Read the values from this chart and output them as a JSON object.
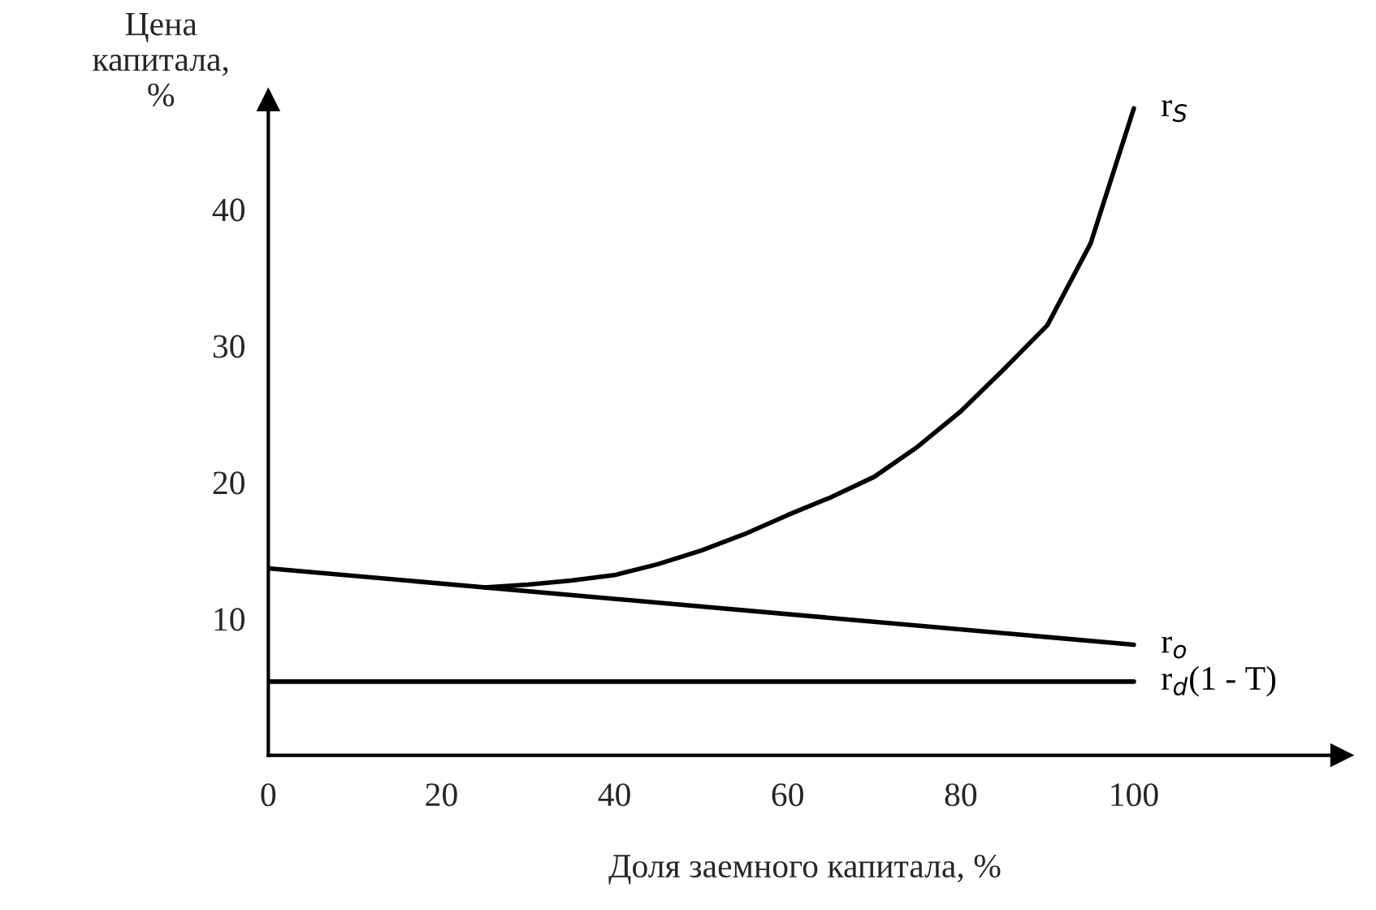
{
  "chart_data": {
    "type": "line",
    "xlabel": "Доля заемного капитала, %",
    "ylabel": "Цена\nкапитала,\n%",
    "xlim": [
      0,
      124
    ],
    "ylim": [
      0,
      48
    ],
    "xticks": [
      0,
      20,
      40,
      60,
      80,
      100
    ],
    "yticks": [
      10,
      20,
      30,
      40
    ],
    "grid": false,
    "line_style": "solid",
    "marker": "none",
    "series": [
      {
        "name": "r$_{S}$",
        "color": "#000000",
        "x": [
          25,
          30,
          35,
          40,
          45,
          50,
          55,
          60,
          65,
          70,
          75,
          80,
          85,
          90,
          95,
          100
        ],
        "values": [
          12.3,
          12.5,
          12.8,
          13.2,
          14.0,
          15.0,
          16.2,
          17.6,
          18.9,
          20.4,
          22.6,
          25.2,
          28.3,
          31.5,
          37.5,
          47.4
        ]
      },
      {
        "name": "r$_{o}$",
        "color": "#000000",
        "x": [
          0,
          100
        ],
        "values": [
          13.7,
          8.1
        ]
      },
      {
        "name": "r$_{d}$(1 - T)",
        "color": "#000000",
        "x": [
          0,
          100
        ],
        "values": [
          5.4,
          5.4
        ]
      }
    ]
  }
}
